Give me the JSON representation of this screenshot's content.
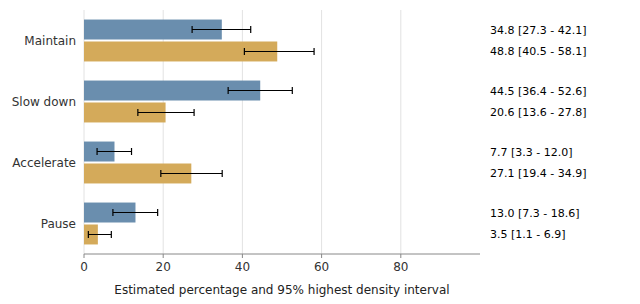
{
  "chart_data": {
    "type": "bar",
    "orientation": "horizontal",
    "categories": [
      "Maintain",
      "Slow down",
      "Accelerate",
      "Pause"
    ],
    "series": [
      {
        "color": "#6a8eae",
        "values": [
          34.8,
          44.5,
          7.7,
          13.0
        ],
        "errors_low": [
          7.5,
          8.1,
          4.4,
          5.7
        ],
        "errors_high": [
          7.3,
          8.1,
          4.3,
          5.6
        ],
        "value_labels": [
          "34.8 [27.3 - 42.1]",
          "44.5 [36.4 - 52.6]",
          "7.7 [3.3 - 12.0]",
          "13.0 [7.3 - 18.6]"
        ]
      },
      {
        "color": "#d4aa5a",
        "values": [
          48.8,
          20.6,
          27.1,
          3.5
        ],
        "errors_low": [
          8.3,
          7.0,
          7.7,
          2.4
        ],
        "errors_high": [
          9.3,
          7.2,
          7.8,
          3.4
        ],
        "value_labels": [
          "48.8 [40.5 - 58.1]",
          "20.6 [13.6 - 27.8]",
          "27.1 [19.4 - 34.9]",
          "3.5 [1.1 - 6.9]"
        ]
      }
    ],
    "xlabel": "Estimated percentage and 95% highest density interval",
    "xlim": [
      0,
      100
    ],
    "xticks": [
      0,
      20,
      40,
      60,
      80
    ],
    "grid": true
  }
}
